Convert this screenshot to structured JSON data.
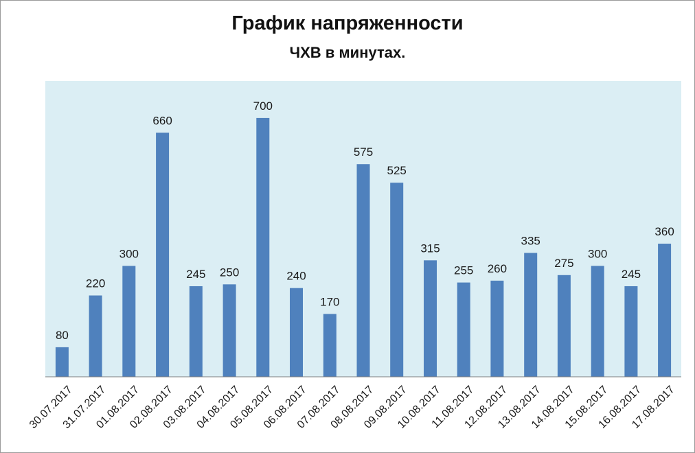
{
  "chart_data": {
    "type": "bar",
    "title": "График напряженности",
    "subtitle": "ЧХВ в минутах.",
    "xlabel": "",
    "ylabel": "",
    "categories": [
      "30.07.2017",
      "31.07.2017",
      "01.08.2017",
      "02.08.2017",
      "03.08.2017",
      "04.08.2017",
      "05.08.2017",
      "06.08.2017",
      "07.08.2017",
      "08.08.2017",
      "09.08.2017",
      "10.08.2017",
      "11.08.2017",
      "12.08.2017",
      "13.08.2017",
      "14.08.2017",
      "15.08.2017",
      "16.08.2017",
      "17.08.2017"
    ],
    "values": [
      80,
      220,
      300,
      660,
      245,
      250,
      700,
      240,
      170,
      575,
      525,
      315,
      255,
      260,
      335,
      275,
      300,
      245,
      360
    ],
    "ylim": [
      0,
      800
    ],
    "grid": false,
    "legend": "none",
    "data_labels": true,
    "colors": {
      "bar": "#4f81bd",
      "plot_area": "#dbeef4",
      "axis": "#7f7f7f"
    }
  }
}
